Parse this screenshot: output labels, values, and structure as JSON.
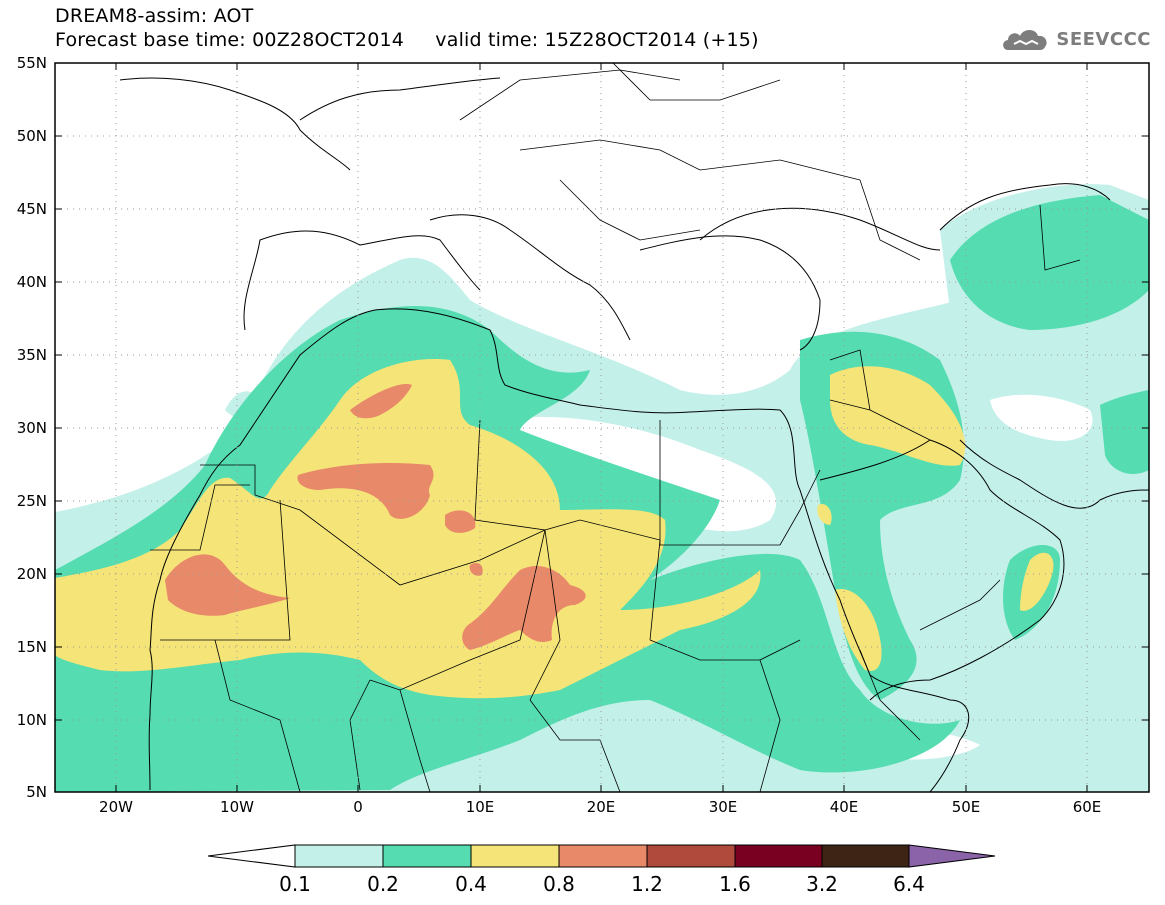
{
  "header": {
    "title_line1": "DREAM8-assim: AOT",
    "title_line2": "Forecast base time: 00Z28OCT2014     valid time: 15Z28OCT2014 (+15)"
  },
  "logo": {
    "text": "SEEVCCC",
    "icon": "cloud-icon",
    "color": "#7d7d7d"
  },
  "map": {
    "lat_ticks": [
      "55N",
      "50N",
      "45N",
      "40N",
      "35N",
      "30N",
      "25N",
      "20N",
      "15N",
      "10N",
      "5N"
    ],
    "lon_ticks": [
      "20W",
      "10W",
      "0",
      "10E",
      "20E",
      "30E",
      "40E",
      "50E",
      "60E"
    ]
  },
  "colorbar": {
    "labels": [
      "0.1",
      "0.2",
      "0.4",
      "0.8",
      "1.2",
      "1.6",
      "3.2",
      "6.4"
    ],
    "colors": [
      "#ffffff",
      "#c4f0ea",
      "#55dcb0",
      "#f5e478",
      "#e8896a",
      "#b04a3c",
      "#7a0022",
      "#3e2414",
      "#8a63a8"
    ]
  },
  "aot_colors": {
    "lt_0_1": "#ffffff",
    "c_0_1_0_2": "#c4f0ea",
    "c_0_2_0_4": "#55dcb0",
    "c_0_4_0_8": "#f5e478",
    "c_0_8_1_2": "#e8896a"
  }
}
